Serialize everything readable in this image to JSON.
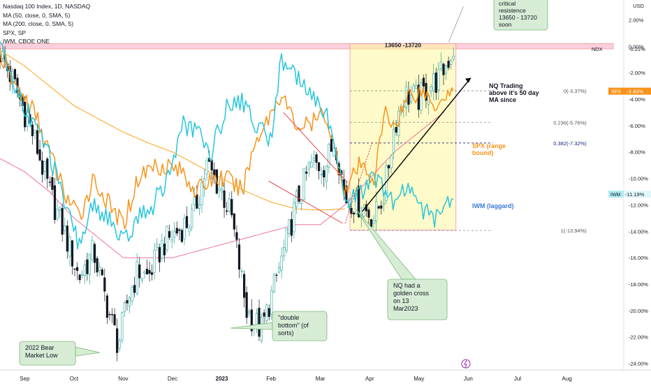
{
  "chart_data": {
    "type": "line",
    "title": "Nasdaq 100 Index, 1D, NASDAQ",
    "legend_entries": [
      "MA (50, close, 0, SMA, 5)",
      "MA (200, close, 0, SMA, 5)",
      "SPX, SP",
      "IWM, CBOE ONE"
    ],
    "currency_label": "USD",
    "y_axis_unit": "% change",
    "ylim": [
      -24.5,
      3.5
    ],
    "y_ticks": [
      2,
      0,
      -2,
      -4,
      -6,
      -8,
      -10,
      -12,
      -14,
      -16,
      -18,
      -20,
      -22,
      -24
    ],
    "y_tick_labels": [
      "2.00%",
      "0.00%",
      "-2.00%",
      "-4.00%",
      "-6.00%",
      "-8.00%",
      "-10.00%",
      "-12.00%",
      "-14.00%",
      "-16.00%",
      "-18.00%",
      "-20.00%",
      "-22.00%",
      "-24.00%"
    ],
    "x_ticks": [
      "Sep",
      "Oct",
      "Nov",
      "Dec",
      "2023",
      "Feb",
      "Mar",
      "Apr",
      "May",
      "Jun",
      "Jul",
      "Aug"
    ],
    "x_tick_month_index": [
      0.5,
      1.5,
      2.5,
      3.5,
      4.5,
      5.5,
      6.5,
      7.5,
      8.5,
      9.5,
      10.5,
      11.5
    ],
    "xlim_months": [
      0,
      12.3
    ],
    "price_labels": [
      {
        "symbol": "NDX",
        "text": "-0.21%",
        "value": -0.21
      },
      {
        "symbol": "SPX",
        "text": "-3.40%",
        "value": -3.4
      },
      {
        "symbol": "IWM",
        "text": "-11.19%",
        "value": -11.19
      }
    ],
    "fib_levels": [
      {
        "label": "0(-3.37%)",
        "value": -3.37
      },
      {
        "label": "0.236(-5.76%)",
        "value": -5.76
      },
      {
        "label": "0.382(-7.32%)",
        "value": -7.32
      },
      {
        "label": "1(-13.94%)",
        "value": -13.94
      }
    ],
    "resistance_zone": {
      "label": "13650 -13720",
      "from": 0.2,
      "to": -0.2
    },
    "highlight_box": {
      "start_month": 7.1,
      "end_month": 9.25,
      "top": 0.2,
      "bottom": -13.9
    },
    "series": [
      {
        "name": "Nasdaq 100 Index (NDX) close",
        "color": "#131722",
        "x": [
          0,
          0.3,
          0.7,
          1.0,
          1.3,
          1.6,
          1.9,
          2.0,
          2.2,
          2.4,
          2.6,
          2.8,
          3.0,
          3.3,
          3.6,
          3.9,
          4.2,
          4.5,
          4.7,
          5.0,
          5.3,
          5.5,
          5.8,
          6.0,
          6.3,
          6.6,
          6.8,
          7.0,
          7.3,
          7.6,
          7.8,
          8.0,
          8.2,
          8.5,
          8.7,
          8.9,
          9.1,
          9.2
        ],
        "values": [
          -0.5,
          -3,
          -7,
          -11,
          -14,
          -17.5,
          -15.5,
          -17,
          -20,
          -22.6,
          -19,
          -17,
          -17.5,
          -15,
          -14,
          -13,
          -9,
          -11,
          -13,
          -20,
          -21.5,
          -19,
          -15,
          -12,
          -9,
          -9,
          -7,
          -11.5,
          -12,
          -13,
          -11,
          -6,
          -3.6,
          -4,
          -3,
          -2.5,
          -1,
          -0.2
        ]
      },
      {
        "name": "SPX",
        "color": "#f7931a",
        "x": [
          0,
          0.3,
          0.7,
          1.0,
          1.3,
          1.6,
          1.9,
          2.2,
          2.5,
          2.8,
          3.1,
          3.4,
          3.7,
          4.0,
          4.3,
          4.6,
          4.9,
          5.2,
          5.5,
          5.7,
          6.0,
          6.3,
          6.6,
          6.8,
          7.0,
          7.3,
          7.6,
          7.8,
          8.0,
          8.3,
          8.6,
          8.8,
          9.0,
          9.2
        ],
        "values": [
          -0.5,
          -3,
          -5,
          -8,
          -11,
          -13,
          -10,
          -12,
          -13.5,
          -10,
          -9,
          -9,
          -9.5,
          -11,
          -10,
          -10,
          -11,
          -7,
          -5,
          -3.5,
          -6,
          -6,
          -5,
          -8,
          -11,
          -9,
          -10,
          -5,
          -6,
          -3.6,
          -3.4,
          -4.5,
          -3.6,
          -3.4
        ]
      },
      {
        "name": "IWM",
        "color": "#26c6da",
        "x": [
          0,
          0.3,
          0.7,
          1.0,
          1.3,
          1.6,
          1.9,
          2.2,
          2.5,
          2.8,
          3.1,
          3.4,
          3.7,
          4.0,
          4.3,
          4.6,
          4.9,
          5.2,
          5.5,
          5.7,
          6.0,
          6.3,
          6.6,
          6.8,
          7.0,
          7.3,
          7.6,
          7.8,
          8.0,
          8.3,
          8.6,
          8.8,
          9.0,
          9.2
        ],
        "values": [
          0,
          -3,
          -6,
          -8,
          -12,
          -15,
          -12,
          -13,
          -15,
          -13,
          -12,
          -10,
          -6,
          -6.5,
          -8,
          -4.5,
          -4,
          -6,
          -7,
          -1,
          -2,
          -4,
          -5,
          -7,
          -12,
          -11,
          -10,
          -11,
          -12,
          -10.5,
          -12.5,
          -13,
          -12,
          -11.19
        ]
      },
      {
        "name": "MA (50, close, 0, SMA, 5)",
        "color": "#f06292",
        "x": [
          0,
          0.5,
          1.0,
          1.5,
          2.0,
          2.5,
          3.0,
          3.5,
          4.0,
          4.5,
          5.0,
          5.5,
          6.0,
          6.5,
          7.0,
          7.5,
          8.0,
          8.5,
          9.0
        ],
        "values": [
          -8.5,
          -9.5,
          -11,
          -13,
          -14.5,
          -16,
          -16,
          -16,
          -15.5,
          -15,
          -14.5,
          -14,
          -13.5,
          -13.5,
          -12,
          -10,
          -8,
          -6.5,
          -5
        ]
      },
      {
        "name": "MA (200, close, 0, SMA, 5)",
        "color": "#ff9800",
        "x": [
          0,
          0.5,
          1.0,
          1.5,
          2.0,
          2.5,
          3.0,
          3.5,
          4.0,
          4.5,
          5.0,
          5.5,
          6.0,
          6.5,
          7.0
        ],
        "values": [
          -0.3,
          -1.5,
          -3,
          -4.5,
          -5.5,
          -6.5,
          -7.3,
          -8,
          -9,
          -10,
          -11,
          -11.8,
          -12.3,
          -12.4,
          -12.3
        ]
      }
    ],
    "annotations": [
      {
        "id": "resistance",
        "lines": [
          "critical",
          "resistence",
          "13650 - 13720",
          "soon"
        ]
      },
      {
        "id": "nq-trading",
        "lines": [
          "NQ Trading",
          "above it's 50 day",
          "MA since"
        ]
      },
      {
        "id": "spx-range",
        "lines": [
          "SPX (range",
          "bound)"
        ]
      },
      {
        "id": "iwm-laggard",
        "lines": [
          "IWM (laggard)"
        ]
      },
      {
        "id": "golden-cross",
        "lines": [
          "NQ had a",
          "golden cross",
          "on 13",
          "Mar2023"
        ]
      },
      {
        "id": "double-bottom",
        "lines": [
          "\"double",
          "bottom\" (of",
          "sorts)"
        ]
      },
      {
        "id": "bear-low",
        "lines": [
          "2022 Bear",
          "Market Low"
        ]
      }
    ],
    "colors": {
      "ndx_up": "#26a69a",
      "ndx_down": "#131722",
      "spx": "#f7931a",
      "iwm": "#26c6da",
      "ma50": "#f06292",
      "ma200": "#ff9800",
      "resistance_fill": "#f8bbd0",
      "box_fill": "#fff59d",
      "callout_fill": "#d7ecd5",
      "callout_stroke": "#7cb87a",
      "fib_line": "#1a237e",
      "trend_line": "#000000",
      "falling_line": "#e53935"
    }
  }
}
